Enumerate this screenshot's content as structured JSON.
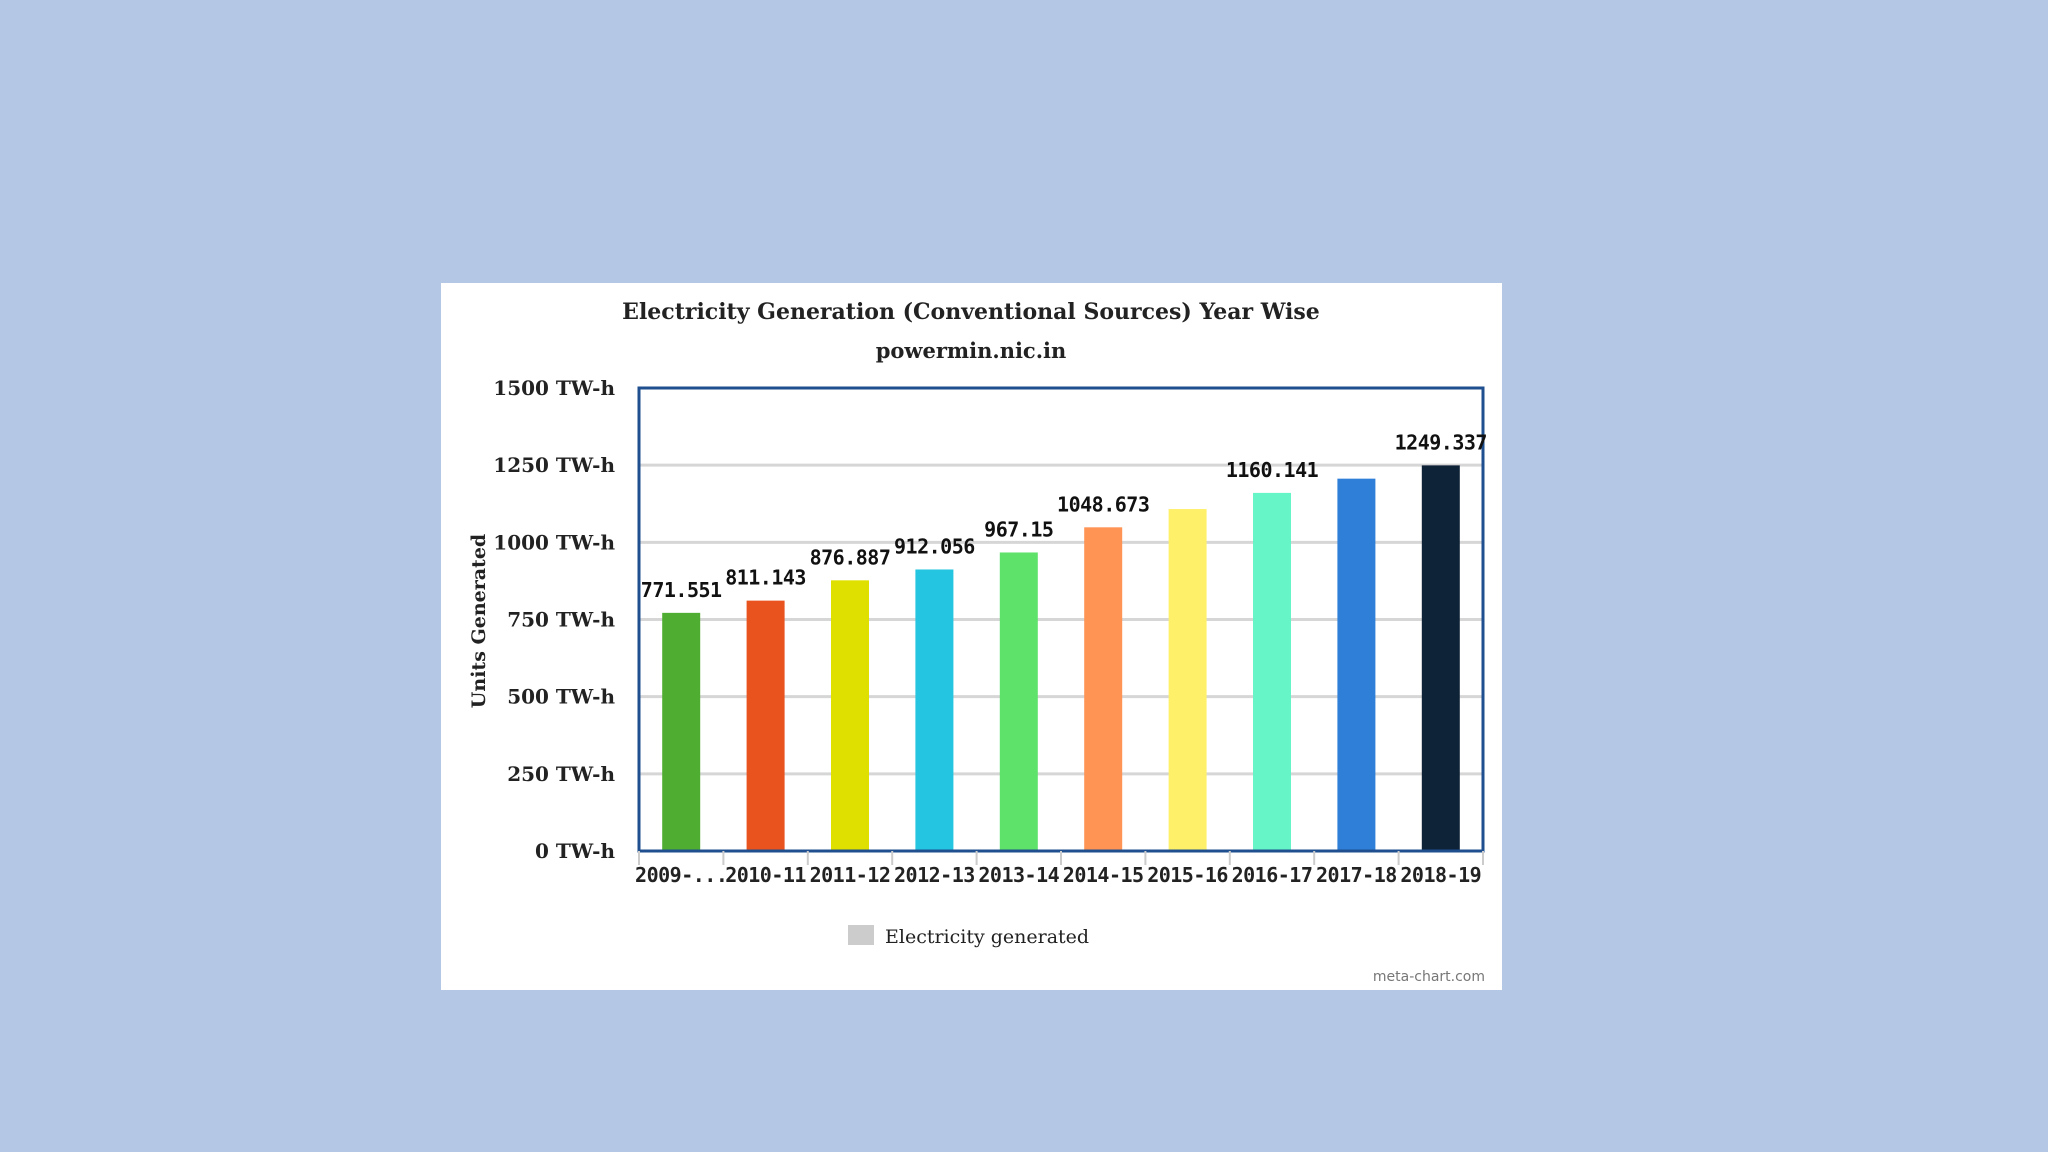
{
  "chart_data": {
    "type": "bar",
    "title": "Electricity Generation (Conventional Sources) Year Wise",
    "subtitle": "powermin.nic.in",
    "ylabel": "Units Generated",
    "xlabel": "",
    "ylim": [
      0,
      1500
    ],
    "y_ticks": [
      "0 TW-h",
      "250 TW-h",
      "500 TW-h",
      "750 TW-h",
      "1000 TW-h",
      "1250 TW-h",
      "1500 TW-h"
    ],
    "y_tick_values": [
      0,
      250,
      500,
      750,
      1000,
      1250,
      1500
    ],
    "grid": true,
    "legend": {
      "position": "bottom",
      "entries": [
        "Electricity generated"
      ]
    },
    "categories": [
      "2009-...",
      "2010-11",
      "2011-12",
      "2012-13",
      "2013-14",
      "2014-15",
      "2015-16",
      "2016-17",
      "2017-18",
      "2018-19"
    ],
    "series": [
      {
        "name": "Electricity generated",
        "values": [
          771.551,
          811.143,
          876.887,
          912.056,
          967.15,
          1048.673,
          1107.8,
          1160.141,
          1206.3,
          1249.337
        ],
        "colors": [
          "#4fae32",
          "#e9541e",
          "#dfe000",
          "#23c5e0",
          "#5ee26a",
          "#ff9455",
          "#fff06a",
          "#66f5c7",
          "#2f7fd8",
          "#0e2238"
        ]
      }
    ],
    "data_labels": [
      "771.551",
      "811.143",
      "876.887",
      "912.056",
      "967.15",
      "1048.673",
      "",
      "1160.141",
      "",
      "1249.337"
    ],
    "credit": "meta-chart.com"
  }
}
